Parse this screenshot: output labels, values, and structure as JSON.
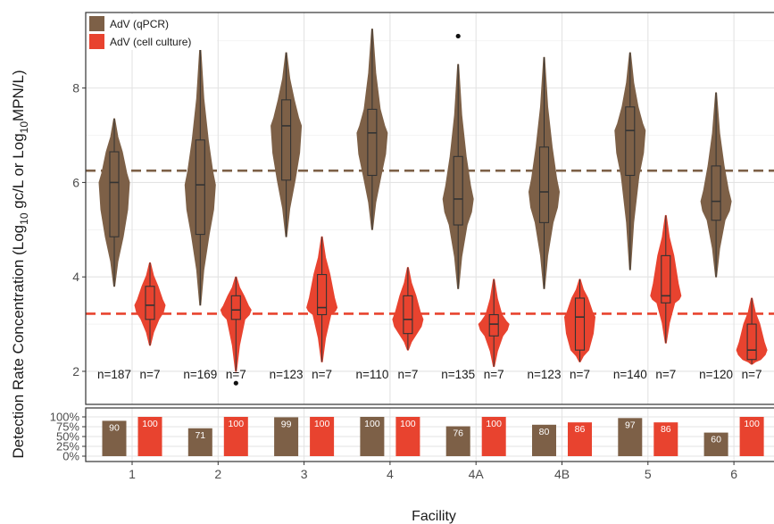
{
  "chart_data": {
    "type": "violin",
    "ylabel_parts": {
      "prefix": "Concentration (Log",
      "sub1": "10",
      "middle": " gc/L or Log",
      "sub2": "10",
      "suffix": "MPN/L)"
    },
    "ylabel_detection": "Detection Rate",
    "xlabel": "Facility",
    "ylim": [
      1.3,
      9.6
    ],
    "y_ticks": [
      "2",
      "4",
      "6",
      "8"
    ],
    "detection_ticks": [
      "100%",
      "75%",
      "50%",
      "25%",
      "0%"
    ],
    "categories": [
      "1",
      "2",
      "3",
      "4",
      "4A",
      "4B",
      "5",
      "6"
    ],
    "legend": [
      {
        "name": "AdV (qPCR)",
        "color": "#7d6047"
      },
      {
        "name": "AdV (cell culture)",
        "color": "#e8432f"
      }
    ],
    "reference_lines": [
      {
        "series": "AdV (qPCR)",
        "y": 6.25,
        "color": "#7d6047"
      },
      {
        "series": "AdV (cell culture)",
        "y": 3.22,
        "color": "#e8432f"
      }
    ],
    "series": [
      {
        "name": "AdV (qPCR)",
        "color": "#7d6047",
        "n_labels": [
          "n=187",
          "n=169",
          "n=123",
          "n=110",
          "n=135",
          "n=123",
          "n=140",
          "n=120"
        ],
        "detection": [
          90,
          71,
          99,
          100,
          76,
          80,
          97,
          60
        ],
        "detection_labels": [
          "90",
          "71",
          "99",
          "100",
          "76",
          "80",
          "97",
          "60"
        ],
        "boxes": [
          {
            "min": 3.8,
            "q1": 4.85,
            "median": 6.0,
            "q3": 6.65,
            "max": 7.35,
            "outliers": []
          },
          {
            "min": 3.4,
            "q1": 4.9,
            "median": 5.95,
            "q3": 6.9,
            "max": 8.85,
            "outliers": []
          },
          {
            "min": 4.85,
            "q1": 6.05,
            "median": 7.2,
            "q3": 7.75,
            "max": 8.75,
            "outliers": []
          },
          {
            "min": 5.0,
            "q1": 6.15,
            "median": 7.05,
            "q3": 7.55,
            "max": 9.25,
            "outliers": []
          },
          {
            "min": 3.75,
            "q1": 5.1,
            "median": 5.65,
            "q3": 6.55,
            "max": 8.5,
            "outliers": [
              9.1
            ]
          },
          {
            "min": 3.75,
            "q1": 5.15,
            "median": 5.8,
            "q3": 6.75,
            "max": 8.65,
            "outliers": []
          },
          {
            "min": 4.15,
            "q1": 6.15,
            "median": 7.1,
            "q3": 7.6,
            "max": 8.75,
            "outliers": []
          },
          {
            "min": 4.0,
            "q1": 5.2,
            "median": 5.6,
            "q3": 6.35,
            "max": 7.9,
            "outliers": []
          }
        ]
      },
      {
        "name": "AdV (cell culture)",
        "color": "#e8432f",
        "n_labels": [
          "n=7",
          "n=7",
          "n=7",
          "n=7",
          "n=7",
          "n=7",
          "n=7",
          "n=7"
        ],
        "detection": [
          100,
          100,
          100,
          100,
          100,
          86,
          86,
          100
        ],
        "detection_labels": [
          "100",
          "100",
          "100",
          "100",
          "100",
          "86",
          "86",
          "100"
        ],
        "boxes": [
          {
            "min": 2.55,
            "q1": 3.1,
            "median": 3.4,
            "q3": 3.8,
            "max": 4.3,
            "outliers": []
          },
          {
            "min": 2.0,
            "q1": 3.1,
            "median": 3.3,
            "q3": 3.6,
            "max": 4.0,
            "outliers": [
              1.75
            ]
          },
          {
            "min": 2.2,
            "q1": 3.2,
            "median": 3.35,
            "q3": 4.05,
            "max": 4.85,
            "outliers": []
          },
          {
            "min": 2.45,
            "q1": 2.8,
            "median": 3.1,
            "q3": 3.6,
            "max": 4.2,
            "outliers": []
          },
          {
            "min": 2.1,
            "q1": 2.75,
            "median": 3.0,
            "q3": 3.2,
            "max": 3.95,
            "outliers": []
          },
          {
            "min": 2.2,
            "q1": 2.45,
            "median": 3.15,
            "q3": 3.55,
            "max": 3.95,
            "outliers": []
          },
          {
            "min": 2.6,
            "q1": 3.45,
            "median": 3.6,
            "q3": 4.45,
            "max": 5.3,
            "outliers": []
          },
          {
            "min": 2.15,
            "q1": 2.25,
            "median": 2.45,
            "q3": 3.0,
            "max": 3.55,
            "outliers": []
          }
        ]
      }
    ]
  }
}
